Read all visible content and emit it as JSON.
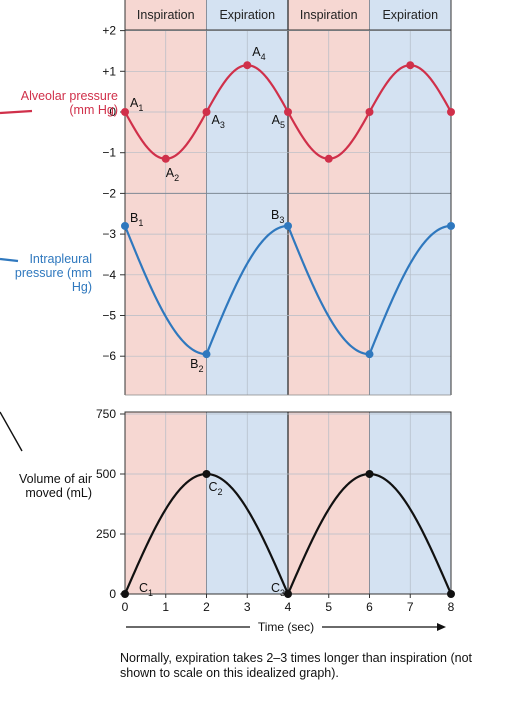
{
  "phase_labels": [
    "Inspiration",
    "Expiration",
    "Inspiration",
    "Expiration"
  ],
  "colors": {
    "inspiration_bg": "#f6d7d2",
    "expiration_bg": "#d4e2f2",
    "alveolar": "#d0304a",
    "intrapleural": "#2f78be",
    "volume": "#111111"
  },
  "labels": {
    "alveolar": "Alveolar pressure (mm Hg)",
    "intrapleural": "Intrapleural pressure (mm Hg)",
    "volume": "Volume of air moved (mL)"
  },
  "caption": "Normally, expiration takes 2–3 times longer than inspiration (not shown to scale on this idealized graph).",
  "chart_data": [
    {
      "type": "line",
      "panel": "pressure",
      "xlabel": "Time (sec)",
      "ylabel": "Alveolar pressure (mm Hg) / Intrapleural pressure (mm Hg)",
      "xlim": [
        0,
        8
      ],
      "ylim": [
        -7,
        2
      ],
      "yticks": [
        2,
        1,
        0,
        -1,
        -2,
        -3,
        -4,
        -5,
        -6
      ],
      "ytick_labels": [
        "+2",
        "+1",
        "0",
        "−1",
        "−2",
        "−3",
        "−4",
        "−5",
        "−6"
      ],
      "series": [
        {
          "name": "Alveolar pressure",
          "x": [
            0,
            1,
            2,
            3,
            4,
            5,
            6,
            7,
            8
          ],
          "values": [
            0,
            -1.15,
            0,
            1.15,
            0,
            -1.15,
            0,
            1.15,
            0
          ]
        },
        {
          "name": "Intrapleural pressure",
          "x": [
            0,
            2,
            4,
            6,
            8
          ],
          "values": [
            -2.8,
            -5.95,
            -2.8,
            -5.95,
            -2.8
          ]
        }
      ],
      "annotations": [
        {
          "text": "A1",
          "x": 0,
          "y": 0
        },
        {
          "text": "A2",
          "x": 1,
          "y": -1.15
        },
        {
          "text": "A3",
          "x": 2,
          "y": 0
        },
        {
          "text": "A4",
          "x": 3,
          "y": 1.15
        },
        {
          "text": "A5",
          "x": 4,
          "y": 0
        },
        {
          "text": "B1",
          "x": 0,
          "y": -2.8
        },
        {
          "text": "B2",
          "x": 2,
          "y": -5.95
        },
        {
          "text": "B3",
          "x": 4,
          "y": -2.8
        }
      ]
    },
    {
      "type": "line",
      "panel": "volume",
      "xlabel": "Time (sec)",
      "ylabel": "Volume of air moved (mL)",
      "xlim": [
        0,
        8
      ],
      "ylim": [
        0,
        750
      ],
      "yticks": [
        0,
        250,
        500,
        750
      ],
      "xticks": [
        0,
        1,
        2,
        3,
        4,
        5,
        6,
        7,
        8
      ],
      "series": [
        {
          "name": "Volume of air moved",
          "x": [
            0,
            2,
            4,
            6,
            8
          ],
          "values": [
            0,
            500,
            0,
            500,
            0
          ]
        }
      ],
      "annotations": [
        {
          "text": "C1",
          "x": 0,
          "y": 0
        },
        {
          "text": "C2",
          "x": 2,
          "y": 500
        },
        {
          "text": "C3",
          "x": 4,
          "y": 0
        }
      ]
    }
  ]
}
